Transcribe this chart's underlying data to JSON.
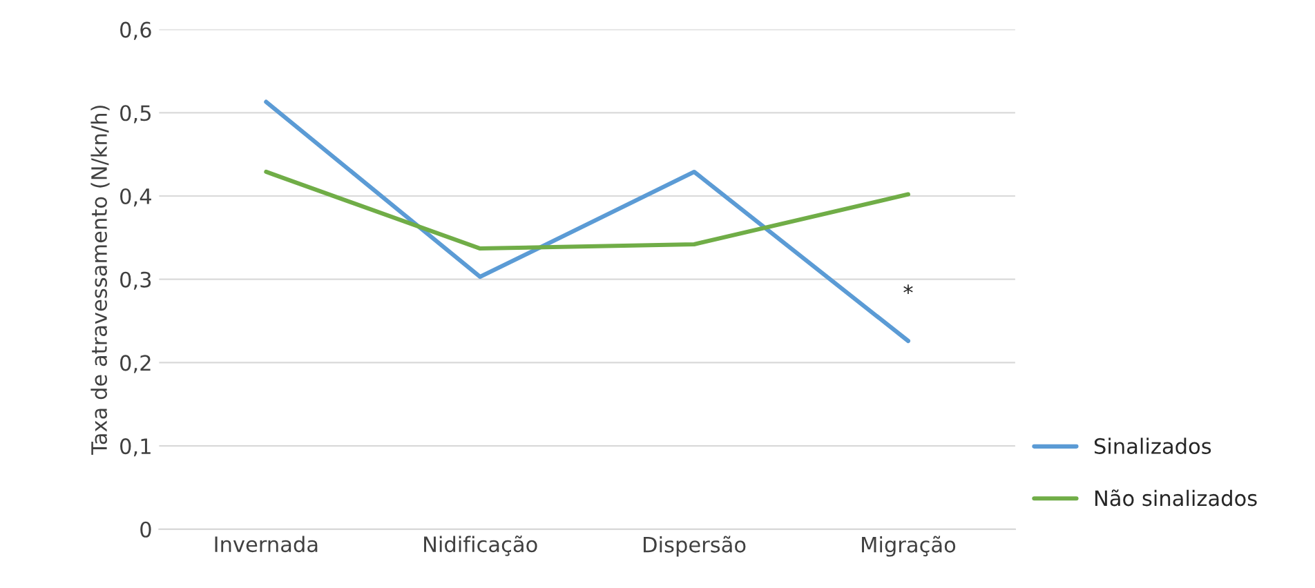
{
  "chart_data": {
    "type": "line",
    "ylabel": "Taxa de atravessamento (N/kn/h)",
    "categories": [
      "Invernada",
      "Nidificação",
      "Dispersão",
      "Migração"
    ],
    "series": [
      {
        "name": "Sinalizados",
        "color": "#5b9bd5",
        "values": [
          0.513,
          0.303,
          0.429,
          0.226
        ]
      },
      {
        "name": "Não sinalizados",
        "color": "#70ad47",
        "values": [
          0.429,
          0.337,
          0.342,
          0.402
        ]
      }
    ],
    "ylim": [
      0,
      0.6
    ],
    "yticks": [
      {
        "value": 0,
        "label": "0"
      },
      {
        "value": 0.1,
        "label": "0,1"
      },
      {
        "value": 0.2,
        "label": "0,2"
      },
      {
        "value": 0.3,
        "label": "0,3"
      },
      {
        "value": 0.4,
        "label": "0,4"
      },
      {
        "value": 0.5,
        "label": "0,5"
      },
      {
        "value": 0.6,
        "label": "0,6"
      }
    ],
    "grid": "y",
    "legend": "bottom right",
    "marker": "none",
    "line_style": "solid",
    "annotations": [
      "*"
    ]
  }
}
